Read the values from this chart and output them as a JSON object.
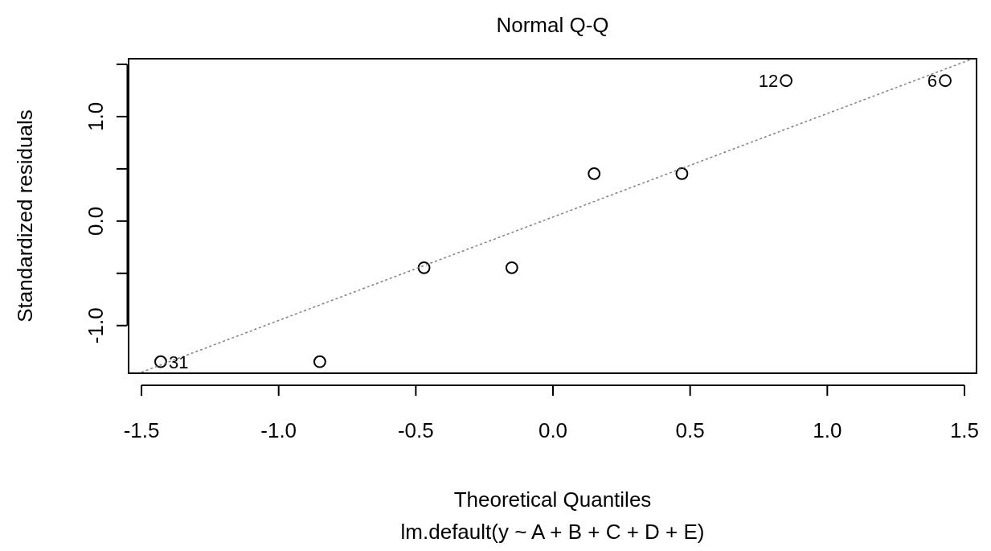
{
  "chart_data": {
    "type": "scatter",
    "title": "Normal Q-Q",
    "xlabel": "Theoretical Quantiles",
    "ylabel": "Standardized residuals",
    "xlim": [
      -1.547,
      1.544
    ],
    "ylim": [
      -1.46,
      1.55
    ],
    "xticks": [
      {
        "value": -1.5,
        "label": "-1.5"
      },
      {
        "value": -1,
        "label": "-1.0"
      },
      {
        "value": -0.5,
        "label": "-0.5"
      },
      {
        "value": 0,
        "label": "0.0"
      },
      {
        "value": 0.5,
        "label": "0.5"
      },
      {
        "value": 1,
        "label": "1.0"
      },
      {
        "value": 1.5,
        "label": "1.5"
      }
    ],
    "yticks": [
      {
        "value": -1,
        "label": "-1.0"
      },
      {
        "value": -0.5,
        "label": null
      },
      {
        "value": 0,
        "label": "0.0"
      },
      {
        "value": 0.5,
        "label": null
      },
      {
        "value": 1,
        "label": "1.0"
      },
      {
        "value": 1.5,
        "label": null
      }
    ],
    "grid": false,
    "marker": "circle",
    "series": [
      {
        "color": "#000000",
        "x": [
          -1.43,
          -0.85,
          -0.47,
          -0.15,
          0.15,
          0.47,
          0.85,
          1.43
        ],
        "values": [
          -1.35,
          -1.35,
          -0.45,
          -0.45,
          0.45,
          0.45,
          1.34,
          1.34
        ]
      },
      {
        "type": "line",
        "color": "#808080",
        "line_style": "dotted",
        "marker": "none",
        "x": [
          -1.5,
          1.52
        ],
        "values": [
          -1.45,
          1.54
        ]
      }
    ],
    "annotations": [
      {
        "text": "31",
        "x": -1.43,
        "y": -1.35
      },
      {
        "text": "12",
        "x": 0.85,
        "y": 1.34
      },
      {
        "text": "6",
        "x": 1.43,
        "y": 1.34
      },
      "lm.default(y ~ A + B + C + D + E)"
    ]
  }
}
